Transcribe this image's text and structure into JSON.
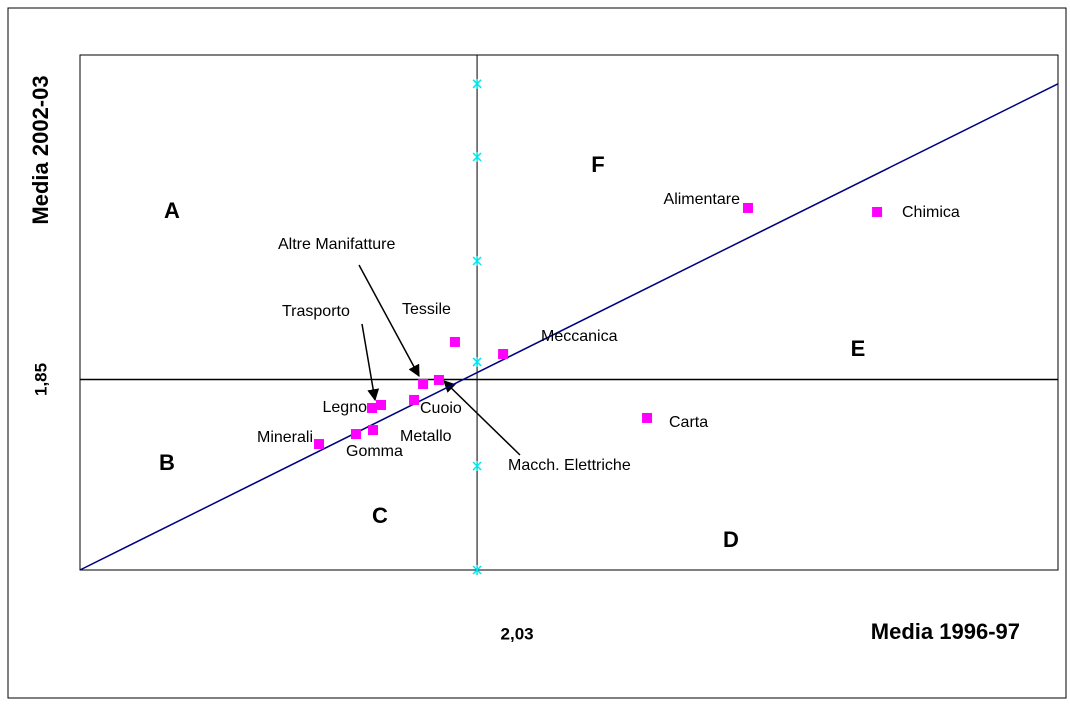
{
  "chart_data": {
    "type": "scatter",
    "x_label": "Media 2002-03",
    "y_label_bottom": "Media 1996-97",
    "names": [
      "Alimentare",
      "Chimica",
      "Meccanica",
      "Tessile",
      "Carta",
      "Macch. Elettriche",
      "Altre Manifatture",
      "Cuoio",
      "Trasporto",
      "Legno",
      "Metallo",
      "Gomma",
      "Minerali"
    ],
    "x": [
      3.415,
      4.075,
      2.163,
      1.917,
      2.899,
      1.835,
      1.754,
      1.708,
      1.539,
      1.493,
      1.498,
      1.411,
      1.222
    ],
    "y": [
      3.515,
      3.476,
      2.097,
      2.214,
      1.476,
      1.845,
      1.806,
      1.651,
      1.602,
      1.573,
      1.359,
      1.32,
      1.223
    ],
    "color": "#ff00ff",
    "xlim": [
      0,
      5
    ],
    "ylim": [
      0,
      5
    ],
    "xticks": [
      {
        "value": 2.03,
        "label": "2,03"
      }
    ],
    "yticks": [
      {
        "value": 1.85,
        "label": "1,85"
      }
    ],
    "diagonal": {
      "x": [
        0,
        5
      ],
      "y": [
        0,
        4.72
      ],
      "color": "#000080"
    },
    "reference_marks": {
      "x": 2.03,
      "y": [
        0,
        1.01,
        2.02,
        3,
        4.01,
        4.72
      ],
      "color": "#00e5ee"
    },
    "regions": [
      "A",
      "B",
      "C",
      "D",
      "E",
      "F"
    ]
  }
}
